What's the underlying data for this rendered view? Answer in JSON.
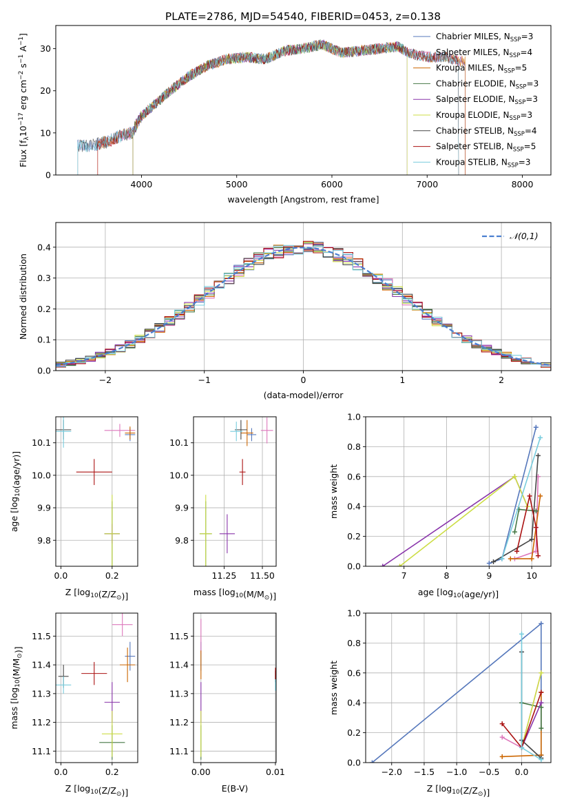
{
  "figure": {
    "title": "PLATE=2786, MJD=54540, FIBERID=0453, z=0.138"
  },
  "chart_data": [
    {
      "id": "spectrum",
      "type": "line",
      "title": "PLATE=2786, MJD=54540, FIBERID=0453, z=0.138",
      "xlabel": "wavelength [Angstrom, rest frame]",
      "ylabel": "Flux [f_λ10^-17 erg cm^-2 s^-1 A^-1]",
      "xlim": [
        3100,
        8300
      ],
      "ylim": [
        0,
        35.5
      ],
      "xticks": [
        4000,
        5000,
        6000,
        7000,
        8000
      ],
      "yticks": [
        0,
        10,
        20,
        30
      ],
      "grid": false,
      "legend": "top-right",
      "continuum": [
        [
          3330,
          7
        ],
        [
          3500,
          7
        ],
        [
          3650,
          8
        ],
        [
          3800,
          9.5
        ],
        [
          3900,
          10
        ],
        [
          4000,
          14
        ],
        [
          4100,
          16
        ],
        [
          4300,
          20
        ],
        [
          4500,
          23.5
        ],
        [
          4700,
          26
        ],
        [
          4900,
          27.5
        ],
        [
          5100,
          28
        ],
        [
          5300,
          27.5
        ],
        [
          5500,
          29.5
        ],
        [
          5700,
          30
        ],
        [
          5900,
          31
        ],
        [
          6100,
          29
        ],
        [
          6300,
          29.5
        ],
        [
          6500,
          30
        ],
        [
          6700,
          30.5
        ],
        [
          6800,
          29
        ],
        [
          7000,
          28
        ],
        [
          7200,
          28
        ],
        [
          7330,
          27
        ]
      ],
      "series": [
        {
          "name": "Chabrier MILES",
          "nssp": "3",
          "color": "#5577bb",
          "x_start": 3330,
          "x_end": 7400
        },
        {
          "name": "Salpeter MILES",
          "nssp": "4",
          "color": "#dd77bb",
          "x_start": 3540,
          "x_end": 7400
        },
        {
          "name": "Kroupa MILES",
          "nssp": "5",
          "color": "#cc6600",
          "x_start": 3540,
          "x_end": 7400
        },
        {
          "name": "Chabrier ELODIE",
          "nssp": "3",
          "color": "#447744",
          "x_start": 3910,
          "x_end": 6790
        },
        {
          "name": "Salpeter ELODIE",
          "nssp": "3",
          "color": "#8833aa",
          "x_start": 3910,
          "x_end": 6790
        },
        {
          "name": "Kroupa ELODIE",
          "nssp": "3",
          "color": "#ccdd44",
          "x_start": 3910,
          "x_end": 6790
        },
        {
          "name": "Chabrier STELIB",
          "nssp": "4",
          "color": "#444444",
          "x_start": 3330,
          "x_end": 7330
        },
        {
          "name": "Salpeter STELIB",
          "nssp": "5",
          "color": "#aa1111",
          "x_start": 3540,
          "x_end": 7330
        },
        {
          "name": "Kroupa STELIB",
          "nssp": "3",
          "color": "#77ccdd",
          "x_start": 3330,
          "x_end": 7330
        }
      ]
    },
    {
      "id": "residuals",
      "type": "histogram",
      "xlabel": "(data-model)/error",
      "ylabel": "Normed distribution",
      "xlim": [
        -2.5,
        2.5
      ],
      "ylim": [
        0,
        0.48
      ],
      "xticks": [
        -2,
        -1,
        0,
        1,
        2
      ],
      "yticks": [
        0.0,
        0.1,
        0.2,
        0.3,
        0.4
      ],
      "grid": true,
      "legend": "top-right",
      "reference_curve": {
        "name": "𝒩(0,1)",
        "mu": 0,
        "sigma": 1,
        "color": "#4a7fd0"
      },
      "bins": {
        "start": -2.5,
        "width": 0.1,
        "count": 50
      }
    },
    {
      "id": "age-vs-Z",
      "type": "scatter",
      "xlabel": "Z [log10(Z/Z⊙)]",
      "ylabel": "age [log10(age/yr)]",
      "xlim": [
        -0.02,
        0.3
      ],
      "ylim": [
        9.72,
        10.18
      ],
      "xticks": [
        0.0,
        0.2
      ],
      "yticks": [
        9.8,
        9.9,
        10.0,
        10.1
      ],
      "grid": true,
      "points": [
        {
          "x": 0.27,
          "xerr": 0.02,
          "y": 10.125,
          "yerr": 0.02,
          "color": "#5577bb"
        },
        {
          "x": 0.23,
          "xerr": 0.06,
          "y": 10.138,
          "yerr": 0.02,
          "color": "#dd77bb"
        },
        {
          "x": 0.27,
          "xerr": 0.02,
          "y": 10.13,
          "yerr": 0.02,
          "color": "#cc6600"
        },
        {
          "x": 0.2,
          "xerr": 0.03,
          "y": 9.82,
          "yerr": 0.1,
          "color": "#447744"
        },
        {
          "x": 0.2,
          "xerr": 0.03,
          "y": 9.82,
          "yerr": 0.03,
          "color": "#8833aa"
        },
        {
          "x": 0.2,
          "xerr": 0.03,
          "y": 9.82,
          "yerr": 0.12,
          "color": "#ccdd44"
        },
        {
          "x": 0.01,
          "xerr": 0.03,
          "y": 10.14,
          "yerr": 0.03,
          "color": "#444444"
        },
        {
          "x": 0.13,
          "xerr": 0.07,
          "y": 10.01,
          "yerr": 0.04,
          "color": "#aa1111"
        },
        {
          "x": 0.01,
          "xerr": 0.03,
          "y": 10.135,
          "yerr": 0.05,
          "color": "#77ccdd"
        }
      ]
    },
    {
      "id": "age-vs-mass",
      "type": "scatter",
      "xlabel": "mass [log10(M/M⊙)]",
      "ylabel": "",
      "xlim": [
        11.05,
        11.59
      ],
      "ylim": [
        9.72,
        10.18
      ],
      "xticks": [
        11.25,
        11.5
      ],
      "yticks": [
        9.8,
        9.9,
        10.0,
        10.1
      ],
      "grid": true,
      "points": [
        {
          "x": 11.43,
          "xerr": 0.03,
          "y": 10.125,
          "yerr": 0.02,
          "color": "#5577bb"
        },
        {
          "x": 11.53,
          "xerr": 0.04,
          "y": 10.138,
          "yerr": 0.04,
          "color": "#dd77bb"
        },
        {
          "x": 11.4,
          "xerr": 0.04,
          "y": 10.13,
          "yerr": 0.04,
          "color": "#cc6600"
        },
        {
          "x": 11.13,
          "xerr": 0.04,
          "y": 9.82,
          "yerr": 0.1,
          "color": "#447744"
        },
        {
          "x": 11.27,
          "xerr": 0.05,
          "y": 9.82,
          "yerr": 0.06,
          "color": "#8833aa"
        },
        {
          "x": 11.13,
          "xerr": 0.04,
          "y": 9.82,
          "yerr": 0.12,
          "color": "#ccdd44"
        },
        {
          "x": 11.36,
          "xerr": 0.04,
          "y": 10.14,
          "yerr": 0.03,
          "color": "#444444"
        },
        {
          "x": 11.37,
          "xerr": 0.02,
          "y": 10.01,
          "yerr": 0.04,
          "color": "#aa1111"
        },
        {
          "x": 11.33,
          "xerr": 0.04,
          "y": 10.135,
          "yerr": 0.03,
          "color": "#77ccdd"
        }
      ]
    },
    {
      "id": "massweight-vs-age",
      "type": "line",
      "xlabel": "age [log10(age/yr)]",
      "ylabel": "mass weight",
      "xlim": [
        6.1,
        10.45
      ],
      "ylim": [
        0,
        1.0
      ],
      "xticks": [
        7,
        8,
        9,
        10
      ],
      "yticks": [
        0.0,
        0.2,
        0.4,
        0.6,
        0.8,
        1.0
      ],
      "grid": true,
      "series": [
        {
          "color": "#5577bb",
          "points": [
            [
              9.0,
              0.02
            ],
            [
              9.3,
              0.05
            ],
            [
              10.1,
              0.93
            ]
          ]
        },
        {
          "color": "#dd77bb",
          "points": [
            [
              9.6,
              0.05
            ],
            [
              10.1,
              0.1
            ],
            [
              10.15,
              0.6
            ]
          ]
        },
        {
          "color": "#cc6600",
          "points": [
            [
              9.5,
              0.05
            ],
            [
              10.0,
              0.05
            ],
            [
              10.2,
              0.47
            ]
          ]
        },
        {
          "color": "#447744",
          "points": [
            [
              9.6,
              0.23
            ],
            [
              9.7,
              0.38
            ],
            [
              10.1,
              0.37
            ]
          ]
        },
        {
          "color": "#8833aa",
          "points": [
            [
              6.5,
              0.0
            ],
            [
              9.6,
              0.6
            ],
            [
              9.9,
              0.4
            ]
          ]
        },
        {
          "color": "#ccdd44",
          "points": [
            [
              6.9,
              0.0
            ],
            [
              9.6,
              0.6
            ],
            [
              9.9,
              0.4
            ]
          ]
        },
        {
          "color": "#444444",
          "points": [
            [
              9.1,
              0.03
            ],
            [
              10.0,
              0.18
            ],
            [
              10.15,
              0.74
            ]
          ]
        },
        {
          "color": "#aa1111",
          "points": [
            [
              9.65,
              0.1
            ],
            [
              9.95,
              0.47
            ],
            [
              10.1,
              0.26
            ],
            [
              10.15,
              0.07
            ]
          ]
        },
        {
          "color": "#77ccdd",
          "points": [
            [
              9.3,
              0.05
            ],
            [
              10.2,
              0.86
            ]
          ]
        }
      ]
    },
    {
      "id": "mass-vs-Z",
      "type": "scatter",
      "xlabel": "Z [log10(Z/Z⊙)]",
      "ylabel": "mass [log10(M/M⊙)]",
      "xlim": [
        -0.02,
        0.3
      ],
      "ylim": [
        11.06,
        11.58
      ],
      "xticks": [
        0.0,
        0.2
      ],
      "yticks": [
        11.1,
        11.2,
        11.3,
        11.4,
        11.5
      ],
      "grid": true,
      "points": [
        {
          "x": 0.27,
          "xerr": 0.02,
          "y": 11.43,
          "yerr": 0.05,
          "color": "#5577bb"
        },
        {
          "x": 0.24,
          "xerr": 0.04,
          "y": 11.54,
          "yerr": 0.04,
          "color": "#dd77bb"
        },
        {
          "x": 0.26,
          "xerr": 0.03,
          "y": 11.4,
          "yerr": 0.06,
          "color": "#cc6600"
        },
        {
          "x": 0.2,
          "xerr": 0.05,
          "y": 11.13,
          "yerr": 0.06,
          "color": "#447744"
        },
        {
          "x": 0.2,
          "xerr": 0.03,
          "y": 11.27,
          "yerr": 0.07,
          "color": "#8833aa"
        },
        {
          "x": 0.2,
          "xerr": 0.04,
          "y": 11.16,
          "yerr": 0.08,
          "color": "#ccdd44"
        },
        {
          "x": 0.01,
          "xerr": 0.02,
          "y": 11.36,
          "yerr": 0.04,
          "color": "#444444"
        },
        {
          "x": 0.13,
          "xerr": 0.05,
          "y": 11.37,
          "yerr": 0.04,
          "color": "#aa1111"
        },
        {
          "x": 0.01,
          "xerr": 0.03,
          "y": 11.33,
          "yerr": 0.03,
          "color": "#77ccdd"
        }
      ]
    },
    {
      "id": "mass-vs-EBV",
      "type": "scatter",
      "xlabel": "E(B-V)",
      "ylabel": "",
      "xlim": [
        -0.001,
        0.0101
      ],
      "ylim": [
        11.06,
        11.58
      ],
      "xticks": [
        0.0,
        0.01
      ],
      "yticks": [
        11.1,
        11.2,
        11.3,
        11.4,
        11.5
      ],
      "grid": true,
      "points": [
        {
          "x": 0.0,
          "xerr": 0.0,
          "y": 11.43,
          "yerr": 0.05,
          "color": "#5577bb"
        },
        {
          "x": 0.0,
          "xerr": 0.0,
          "y": 11.5,
          "yerr": 0.06,
          "color": "#dd77bb"
        },
        {
          "x": 0.0,
          "xerr": 0.0,
          "y": 11.4,
          "yerr": 0.05,
          "color": "#cc6600"
        },
        {
          "x": 0.0,
          "xerr": 0.0,
          "y": 11.13,
          "yerr": 0.06,
          "color": "#447744"
        },
        {
          "x": 0.0,
          "xerr": 0.0,
          "y": 11.27,
          "yerr": 0.07,
          "color": "#8833aa"
        },
        {
          "x": 0.0,
          "xerr": 0.0,
          "y": 11.16,
          "yerr": 0.08,
          "color": "#ccdd44"
        },
        {
          "x": 0.01,
          "xerr": 0.0,
          "y": 11.36,
          "yerr": 0.02,
          "color": "#444444"
        },
        {
          "x": 0.01,
          "xerr": 0.0,
          "y": 11.37,
          "yerr": 0.02,
          "color": "#aa1111"
        },
        {
          "x": 0.01,
          "xerr": 0.0,
          "y": 11.33,
          "yerr": 0.02,
          "color": "#77ccdd"
        }
      ]
    },
    {
      "id": "massweight-vs-Z",
      "type": "line",
      "xlabel": "Z [log10(Z/Z⊙)]",
      "ylabel": "mass weight",
      "xlim": [
        -2.4,
        0.45
      ],
      "ylim": [
        0,
        1.0
      ],
      "xticks": [
        -2.0,
        -1.5,
        -1.0,
        -0.5,
        0.0
      ],
      "yticks": [
        0.0,
        0.2,
        0.4,
        0.6,
        0.8,
        1.0
      ],
      "grid": true,
      "series": [
        {
          "color": "#5577bb",
          "points": [
            [
              -2.3,
              0.0
            ],
            [
              0.3,
              0.93
            ],
            [
              0.3,
              0.05
            ]
          ]
        },
        {
          "color": "#dd77bb",
          "points": [
            [
              -0.3,
              0.17
            ],
            [
              0.0,
              0.1
            ],
            [
              0.3,
              0.6
            ]
          ]
        },
        {
          "color": "#cc6600",
          "points": [
            [
              -0.3,
              0.04
            ],
            [
              0.3,
              0.05
            ],
            [
              0.3,
              0.47
            ]
          ]
        },
        {
          "color": "#447744",
          "points": [
            [
              0.0,
              0.4
            ],
            [
              0.3,
              0.37
            ],
            [
              0.3,
              0.23
            ]
          ]
        },
        {
          "color": "#8833aa",
          "points": [
            [
              0.0,
              0.1
            ],
            [
              0.3,
              0.4
            ]
          ]
        },
        {
          "color": "#ccdd44",
          "points": [
            [
              0.0,
              0.1
            ],
            [
              0.3,
              0.6
            ]
          ]
        },
        {
          "color": "#444444",
          "points": [
            [
              0.0,
              0.74
            ],
            [
              0.0,
              0.15
            ],
            [
              0.3,
              0.03
            ]
          ]
        },
        {
          "color": "#aa1111",
          "points": [
            [
              -0.3,
              0.26
            ],
            [
              0.0,
              0.1
            ],
            [
              0.3,
              0.47
            ]
          ]
        },
        {
          "color": "#77ccdd",
          "points": [
            [
              0.0,
              0.86
            ],
            [
              0.0,
              0.1
            ],
            [
              0.3,
              0.02
            ]
          ]
        }
      ]
    }
  ]
}
